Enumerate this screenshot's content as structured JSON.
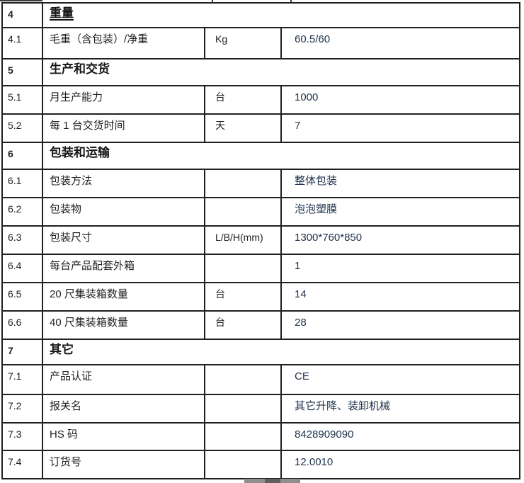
{
  "colors": {
    "border": "#202020",
    "label_text": "#1f1f1f",
    "value_text": "#20344d",
    "page_background": "#ffffff",
    "bottom_bar_gray": "#8f8f8f"
  },
  "table": {
    "rows": [
      {
        "type": "section",
        "num": "4",
        "title": "重量"
      },
      {
        "type": "data",
        "num": "4.1",
        "label": "毛重（含包装）/净重",
        "unit": "Kg",
        "value": "60.5/60"
      },
      {
        "type": "section",
        "num": "5",
        "title": "生产和交货"
      },
      {
        "type": "data",
        "num": "5.1",
        "label": "月生产能力",
        "unit": "台",
        "value": "1000"
      },
      {
        "type": "data",
        "num": "5.2",
        "label": "每 1 台交货时间",
        "unit": "天",
        "value": "7"
      },
      {
        "type": "section",
        "num": "6",
        "title": "包装和运输"
      },
      {
        "type": "data",
        "num": "6.1",
        "label": "包装方法",
        "unit": "",
        "value": "整体包装"
      },
      {
        "type": "data",
        "num": "6.2",
        "label": "包装物",
        "unit": "",
        "value": "泡泡塑膜"
      },
      {
        "type": "data",
        "num": "6.3",
        "label": "包装尺寸",
        "unit": "L/B/H(mm)",
        "value": "1300*760*850"
      },
      {
        "type": "data",
        "num": "6.4",
        "label": "每台产品配套外箱",
        "unit": "",
        "value": "1"
      },
      {
        "type": "data",
        "num": "6.5",
        "label": "20 尺集装箱数量",
        "unit": "台",
        "value": "14"
      },
      {
        "type": "data",
        "num": "6.6",
        "label": "40 尺集装箱数量",
        "unit": "台",
        "value": "28"
      },
      {
        "type": "section",
        "num": "7",
        "title": "其它"
      },
      {
        "type": "data",
        "num": "7.1",
        "label": "产品认证",
        "unit": "",
        "value": "CE"
      },
      {
        "type": "data",
        "num": "7.2",
        "label": "报关名",
        "unit": "",
        "value": "其它升降、装卸机械"
      },
      {
        "type": "data",
        "num": "7.3",
        "label": "HS 码",
        "unit": "",
        "value": "8428909090"
      },
      {
        "type": "data",
        "num": "7.4",
        "label": "订货号",
        "unit": "",
        "value": "12.0010"
      }
    ]
  }
}
